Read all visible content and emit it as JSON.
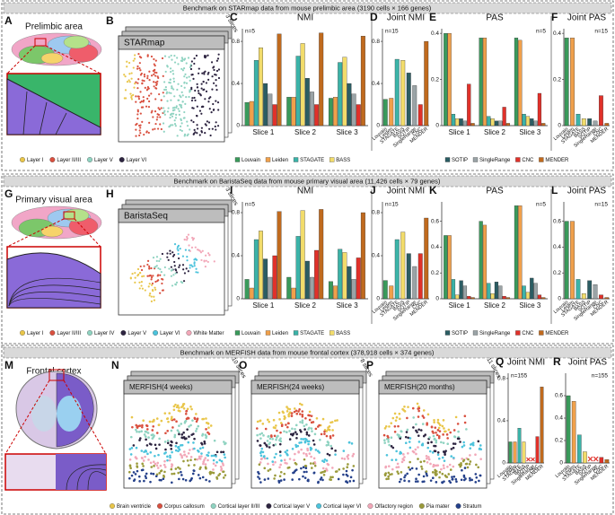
{
  "sections": [
    {
      "banner": "Benchmark on STARmap data from mouse prelimbic area (3190 cells × 166 genes)",
      "tissue": {
        "letter": "A",
        "title": "Prelimbic area",
        "legend": [
          {
            "name": "Layer I",
            "color": "#e9c64a"
          },
          {
            "name": "Layer II/III",
            "color": "#d9503f"
          },
          {
            "name": "Layer V",
            "color": "#8fd3c1"
          },
          {
            "name": "Layer VI",
            "color": "#2d2440"
          }
        ]
      },
      "slides": [
        {
          "letter": "B",
          "title": "STARmap",
          "count_label": "3 slices"
        }
      ]
    },
    {
      "banner": "Benchmark on BaristaSeq data from mouse primary visual area (11,426 cells × 79 genes)",
      "tissue": {
        "letter": "G",
        "title": "Primary visual area",
        "legend": [
          {
            "name": "Layer I",
            "color": "#e9c64a"
          },
          {
            "name": "Layer II/III",
            "color": "#d9503f"
          },
          {
            "name": "Layer IV",
            "color": "#8fd3c1"
          },
          {
            "name": "Layer V",
            "color": "#2d2440"
          },
          {
            "name": "Layer VI",
            "color": "#4cc3dc"
          },
          {
            "name": "White Matter",
            "color": "#f2a7b8"
          }
        ]
      },
      "slides": [
        {
          "letter": "H",
          "title": "BaristaSeq",
          "count_label": "3 slices"
        }
      ]
    },
    {
      "banner": "Benchmark on MERFISH data from mouse frontal cortex (378,918 cells × 374 genes)",
      "tissue": {
        "letter": "M",
        "title": "Frontal cortex",
        "legend": [
          {
            "name": "Brain ventricle",
            "color": "#e9c64a"
          },
          {
            "name": "Corpus callosum",
            "color": "#d9503f"
          },
          {
            "name": "Cortical layer II/III",
            "color": "#8fd3c1"
          },
          {
            "name": "Cortical layer V",
            "color": "#2d2440"
          },
          {
            "name": "Cortical layer VI",
            "color": "#4cc3dc"
          },
          {
            "name": "Olfactory region",
            "color": "#f2a7b8"
          },
          {
            "name": "Pia mater",
            "color": "#9a9a3a"
          },
          {
            "name": "Stratum",
            "color": "#24408a"
          }
        ]
      },
      "slides": [
        {
          "letter": "N",
          "title": "MERFISH(4 weeks)",
          "count_label": "10 slices"
        },
        {
          "letter": "O",
          "title": "MERFISH(24 weeks)",
          "count_label": "8 slices"
        },
        {
          "letter": "P",
          "title": "MERFISH(20 months)",
          "count_label": "11 slices"
        }
      ]
    }
  ],
  "chart_data": [
    {
      "type": "grouped_bar",
      "panel": "C",
      "title": "NMI",
      "annotation": "n=5",
      "annotation_position": "top-left",
      "categories": [
        "Slice 1",
        "Slice 2",
        "Slice 3"
      ],
      "ylim": [
        0,
        0.92
      ],
      "yticks": [
        0,
        0.4,
        0.8
      ],
      "series": [
        {
          "name": "Louvain",
          "color": "#3a9a5b",
          "values": [
            0.22,
            0.27,
            0.26
          ]
        },
        {
          "name": "Leiden",
          "color": "#f0a04b",
          "values": [
            0.23,
            0.27,
            0.27
          ]
        },
        {
          "name": "STAGATE",
          "color": "#3bb3a8",
          "values": [
            0.62,
            0.66,
            0.6
          ]
        },
        {
          "name": "BASS",
          "color": "#f2dc6b",
          "values": [
            0.74,
            0.78,
            0.65
          ]
        },
        {
          "name": "SOTIP",
          "color": "#2b5d63",
          "values": [
            0.4,
            0.45,
            0.4
          ]
        },
        {
          "name": "SingleRange",
          "color": "#9aa3a6",
          "values": [
            0.3,
            0.32,
            0.3
          ]
        },
        {
          "name": "CNC",
          "color": "#e0312a",
          "values": [
            0.2,
            0.2,
            0.2
          ]
        },
        {
          "name": "MENDER",
          "color": "#c06a1e",
          "values": [
            0.87,
            0.88,
            0.85
          ]
        }
      ]
    },
    {
      "type": "bar",
      "panel": "D",
      "title": "Joint NMI",
      "annotation": "n=15",
      "annotation_position": "top-left",
      "categories": [
        "Louvain",
        "Leiden",
        "STAGATE",
        "BASS",
        "SOTIP",
        "SingleRange",
        "CNC",
        "MENDER"
      ],
      "values": [
        0.25,
        0.26,
        0.63,
        0.62,
        0.5,
        0.38,
        0.2,
        0.8
      ],
      "colors": [
        "#3a9a5b",
        "#f0a04b",
        "#3bb3a8",
        "#f2dc6b",
        "#2b5d63",
        "#9aa3a6",
        "#e0312a",
        "#c06a1e"
      ],
      "ylim": [
        0,
        0.92
      ],
      "yticks": [
        0,
        0.4,
        0.8
      ]
    },
    {
      "type": "grouped_bar",
      "panel": "E",
      "title": "PAS",
      "annotation": "n=5",
      "annotation_position": "top-right",
      "categories": [
        "Slice 1",
        "Slice 2",
        "Slice 3"
      ],
      "ylim": [
        0,
        0.42
      ],
      "yticks": [
        0,
        0.2,
        0.4
      ],
      "series": [
        {
          "name": "Louvain",
          "color": "#3a9a5b",
          "values": [
            0.4,
            0.38,
            0.38
          ]
        },
        {
          "name": "Leiden",
          "color": "#f0a04b",
          "values": [
            0.4,
            0.38,
            0.37
          ]
        },
        {
          "name": "STAGATE",
          "color": "#3bb3a8",
          "values": [
            0.05,
            0.04,
            0.05
          ]
        },
        {
          "name": "BASS",
          "color": "#f2dc6b",
          "values": [
            0.03,
            0.03,
            0.04
          ]
        },
        {
          "name": "SOTIP",
          "color": "#2b5d63",
          "values": [
            0.03,
            0.02,
            0.03
          ]
        },
        {
          "name": "SingleRange",
          "color": "#9aa3a6",
          "values": [
            0.02,
            0.02,
            0.02
          ]
        },
        {
          "name": "CNC",
          "color": "#e0312a",
          "values": [
            0.18,
            0.08,
            0.14
          ]
        },
        {
          "name": "MENDER",
          "color": "#c06a1e",
          "values": [
            0.01,
            0.01,
            0.01
          ]
        }
      ]
    },
    {
      "type": "bar",
      "panel": "F",
      "title": "Joint PAS",
      "annotation": "n=15",
      "annotation_position": "top-right",
      "categories": [
        "Louvain",
        "Leiden",
        "STAGATE",
        "BASS",
        "SOTIP",
        "SingleRange",
        "CNC",
        "MENDER"
      ],
      "values": [
        0.38,
        0.38,
        0.05,
        0.03,
        0.03,
        0.02,
        0.13,
        0.01
      ],
      "colors": [
        "#3a9a5b",
        "#f0a04b",
        "#3bb3a8",
        "#f2dc6b",
        "#2b5d63",
        "#9aa3a6",
        "#e0312a",
        "#c06a1e"
      ],
      "ylim": [
        0,
        0.42
      ],
      "yticks": [
        0,
        0.2,
        0.4
      ]
    },
    {
      "type": "grouped_bar",
      "panel": "I",
      "title": "NMI",
      "annotation": "n=5",
      "annotation_position": "top-left",
      "categories": [
        "Slice 1",
        "Slice 2",
        "Slice 3"
      ],
      "ylim": [
        0,
        0.9
      ],
      "yticks": [
        0,
        0.4,
        0.8
      ],
      "series": [
        {
          "name": "Louvain",
          "color": "#3a9a5b",
          "values": [
            0.18,
            0.2,
            0.16
          ]
        },
        {
          "name": "Leiden",
          "color": "#f0a04b",
          "values": [
            0.1,
            0.1,
            0.12
          ]
        },
        {
          "name": "STAGATE",
          "color": "#3bb3a8",
          "values": [
            0.55,
            0.58,
            0.46
          ]
        },
        {
          "name": "BASS",
          "color": "#f2dc6b",
          "values": [
            0.63,
            0.82,
            0.43
          ]
        },
        {
          "name": "SOTIP",
          "color": "#2b5d63",
          "values": [
            0.37,
            0.35,
            0.3
          ]
        },
        {
          "name": "SingleRange",
          "color": "#9aa3a6",
          "values": [
            0.2,
            0.2,
            0.18
          ]
        },
        {
          "name": "CNC",
          "color": "#e0312a",
          "values": [
            0.4,
            0.45,
            0.38
          ]
        },
        {
          "name": "MENDER",
          "color": "#c06a1e",
          "values": [
            0.81,
            0.83,
            0.8
          ]
        }
      ]
    },
    {
      "type": "bar",
      "panel": "J",
      "title": "Joint NMI",
      "annotation": "n=15",
      "annotation_position": "top-left",
      "categories": [
        "Louvain",
        "Leiden",
        "STAGATE",
        "BASS",
        "SOTIP",
        "SingleRange",
        "CNC",
        "MENDER"
      ],
      "values": [
        0.17,
        0.12,
        0.55,
        0.62,
        0.42,
        0.3,
        0.42,
        0.75
      ],
      "colors": [
        "#3a9a5b",
        "#f0a04b",
        "#3bb3a8",
        "#f2dc6b",
        "#2b5d63",
        "#9aa3a6",
        "#e0312a",
        "#c06a1e"
      ],
      "ylim": [
        0,
        0.9
      ],
      "yticks": [
        0,
        0.4,
        0.8
      ]
    },
    {
      "type": "grouped_bar",
      "panel": "K",
      "title": "PAS",
      "annotation": "n=5",
      "annotation_position": "top-right",
      "categories": [
        "Slice 1",
        "Slice 2",
        "Slice 3"
      ],
      "ylim": [
        0,
        0.75
      ],
      "yticks": [
        0,
        0.2,
        0.4,
        0.6
      ],
      "series": [
        {
          "name": "Louvain",
          "color": "#3a9a5b",
          "values": [
            0.49,
            0.6,
            0.72
          ]
        },
        {
          "name": "Leiden",
          "color": "#f0a04b",
          "values": [
            0.49,
            0.57,
            0.72
          ]
        },
        {
          "name": "STAGATE",
          "color": "#3bb3a8",
          "values": [
            0.15,
            0.12,
            0.1
          ]
        },
        {
          "name": "BASS",
          "color": "#f2dc6b",
          "values": [
            0.03,
            0.04,
            0.05
          ]
        },
        {
          "name": "SOTIP",
          "color": "#2b5d63",
          "values": [
            0.14,
            0.13,
            0.16
          ]
        },
        {
          "name": "SingleRange",
          "color": "#9aa3a6",
          "values": [
            0.1,
            0.1,
            0.12
          ]
        },
        {
          "name": "CNC",
          "color": "#e0312a",
          "values": [
            0.02,
            0.02,
            0.03
          ]
        },
        {
          "name": "MENDER",
          "color": "#c06a1e",
          "values": [
            0.01,
            0.01,
            0.01
          ]
        }
      ]
    },
    {
      "type": "bar",
      "panel": "L",
      "title": "Joint PAS",
      "annotation": "n=15",
      "annotation_position": "top-right",
      "categories": [
        "Louvain",
        "Leiden",
        "STAGATE",
        "BASS",
        "SOTIP",
        "SingleRange",
        "CNC",
        "MENDER"
      ],
      "values": [
        0.6,
        0.6,
        0.15,
        0.04,
        0.14,
        0.11,
        0.03,
        0.01
      ],
      "colors": [
        "#3a9a5b",
        "#f0a04b",
        "#3bb3a8",
        "#f2dc6b",
        "#2b5d63",
        "#9aa3a6",
        "#e0312a",
        "#c06a1e"
      ],
      "ylim": [
        0,
        0.75
      ],
      "yticks": [
        0,
        0.2,
        0.4,
        0.6
      ]
    },
    {
      "type": "bar",
      "panel": "Q",
      "title": "Joint NMI",
      "annotation": "n=155",
      "annotation_position": "top-left",
      "categories": [
        "Louvain",
        "Leiden",
        "STAGATE",
        "BASS",
        "SOTIP",
        "SingleRange",
        "CNC",
        "MENDER"
      ],
      "values": [
        0.2,
        0.2,
        0.33,
        0.2,
        null,
        null,
        0.25,
        0.72
      ],
      "colors": [
        "#3a9a5b",
        "#f0a04b",
        "#3bb3a8",
        "#f2dc6b",
        "#2b5d63",
        "#9aa3a6",
        "#e0312a",
        "#c06a1e"
      ],
      "ylim": [
        0,
        0.85
      ],
      "yticks": [
        0,
        0.4,
        0.8
      ]
    },
    {
      "type": "bar",
      "panel": "R",
      "title": "Joint PAS",
      "annotation": "n=155",
      "annotation_position": "top-right",
      "categories": [
        "Louvain",
        "Leiden",
        "STAGATE",
        "BASS",
        "SOTIP",
        "SingleRange",
        "CNC",
        "MENDER"
      ],
      "values": [
        0.6,
        0.55,
        0.25,
        0.1,
        null,
        null,
        0.05,
        0.03
      ],
      "colors": [
        "#3a9a5b",
        "#f0a04b",
        "#3bb3a8",
        "#f2dc6b",
        "#2b5d63",
        "#9aa3a6",
        "#e0312a",
        "#c06a1e"
      ],
      "ylim": [
        0,
        0.8
      ],
      "yticks": [
        0,
        0.2,
        0.4,
        0.6
      ]
    }
  ]
}
